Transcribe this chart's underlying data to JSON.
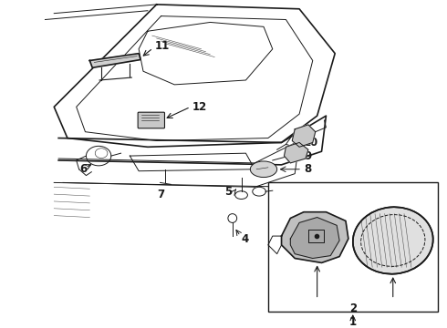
{
  "bg_color": "#ffffff",
  "line_color": "#1a1a1a",
  "lw_main": 1.2,
  "lw_thin": 0.7,
  "lw_hair": 0.4,
  "font_size": 8.5,
  "fig_w": 4.9,
  "fig_h": 3.6,
  "dpi": 100
}
